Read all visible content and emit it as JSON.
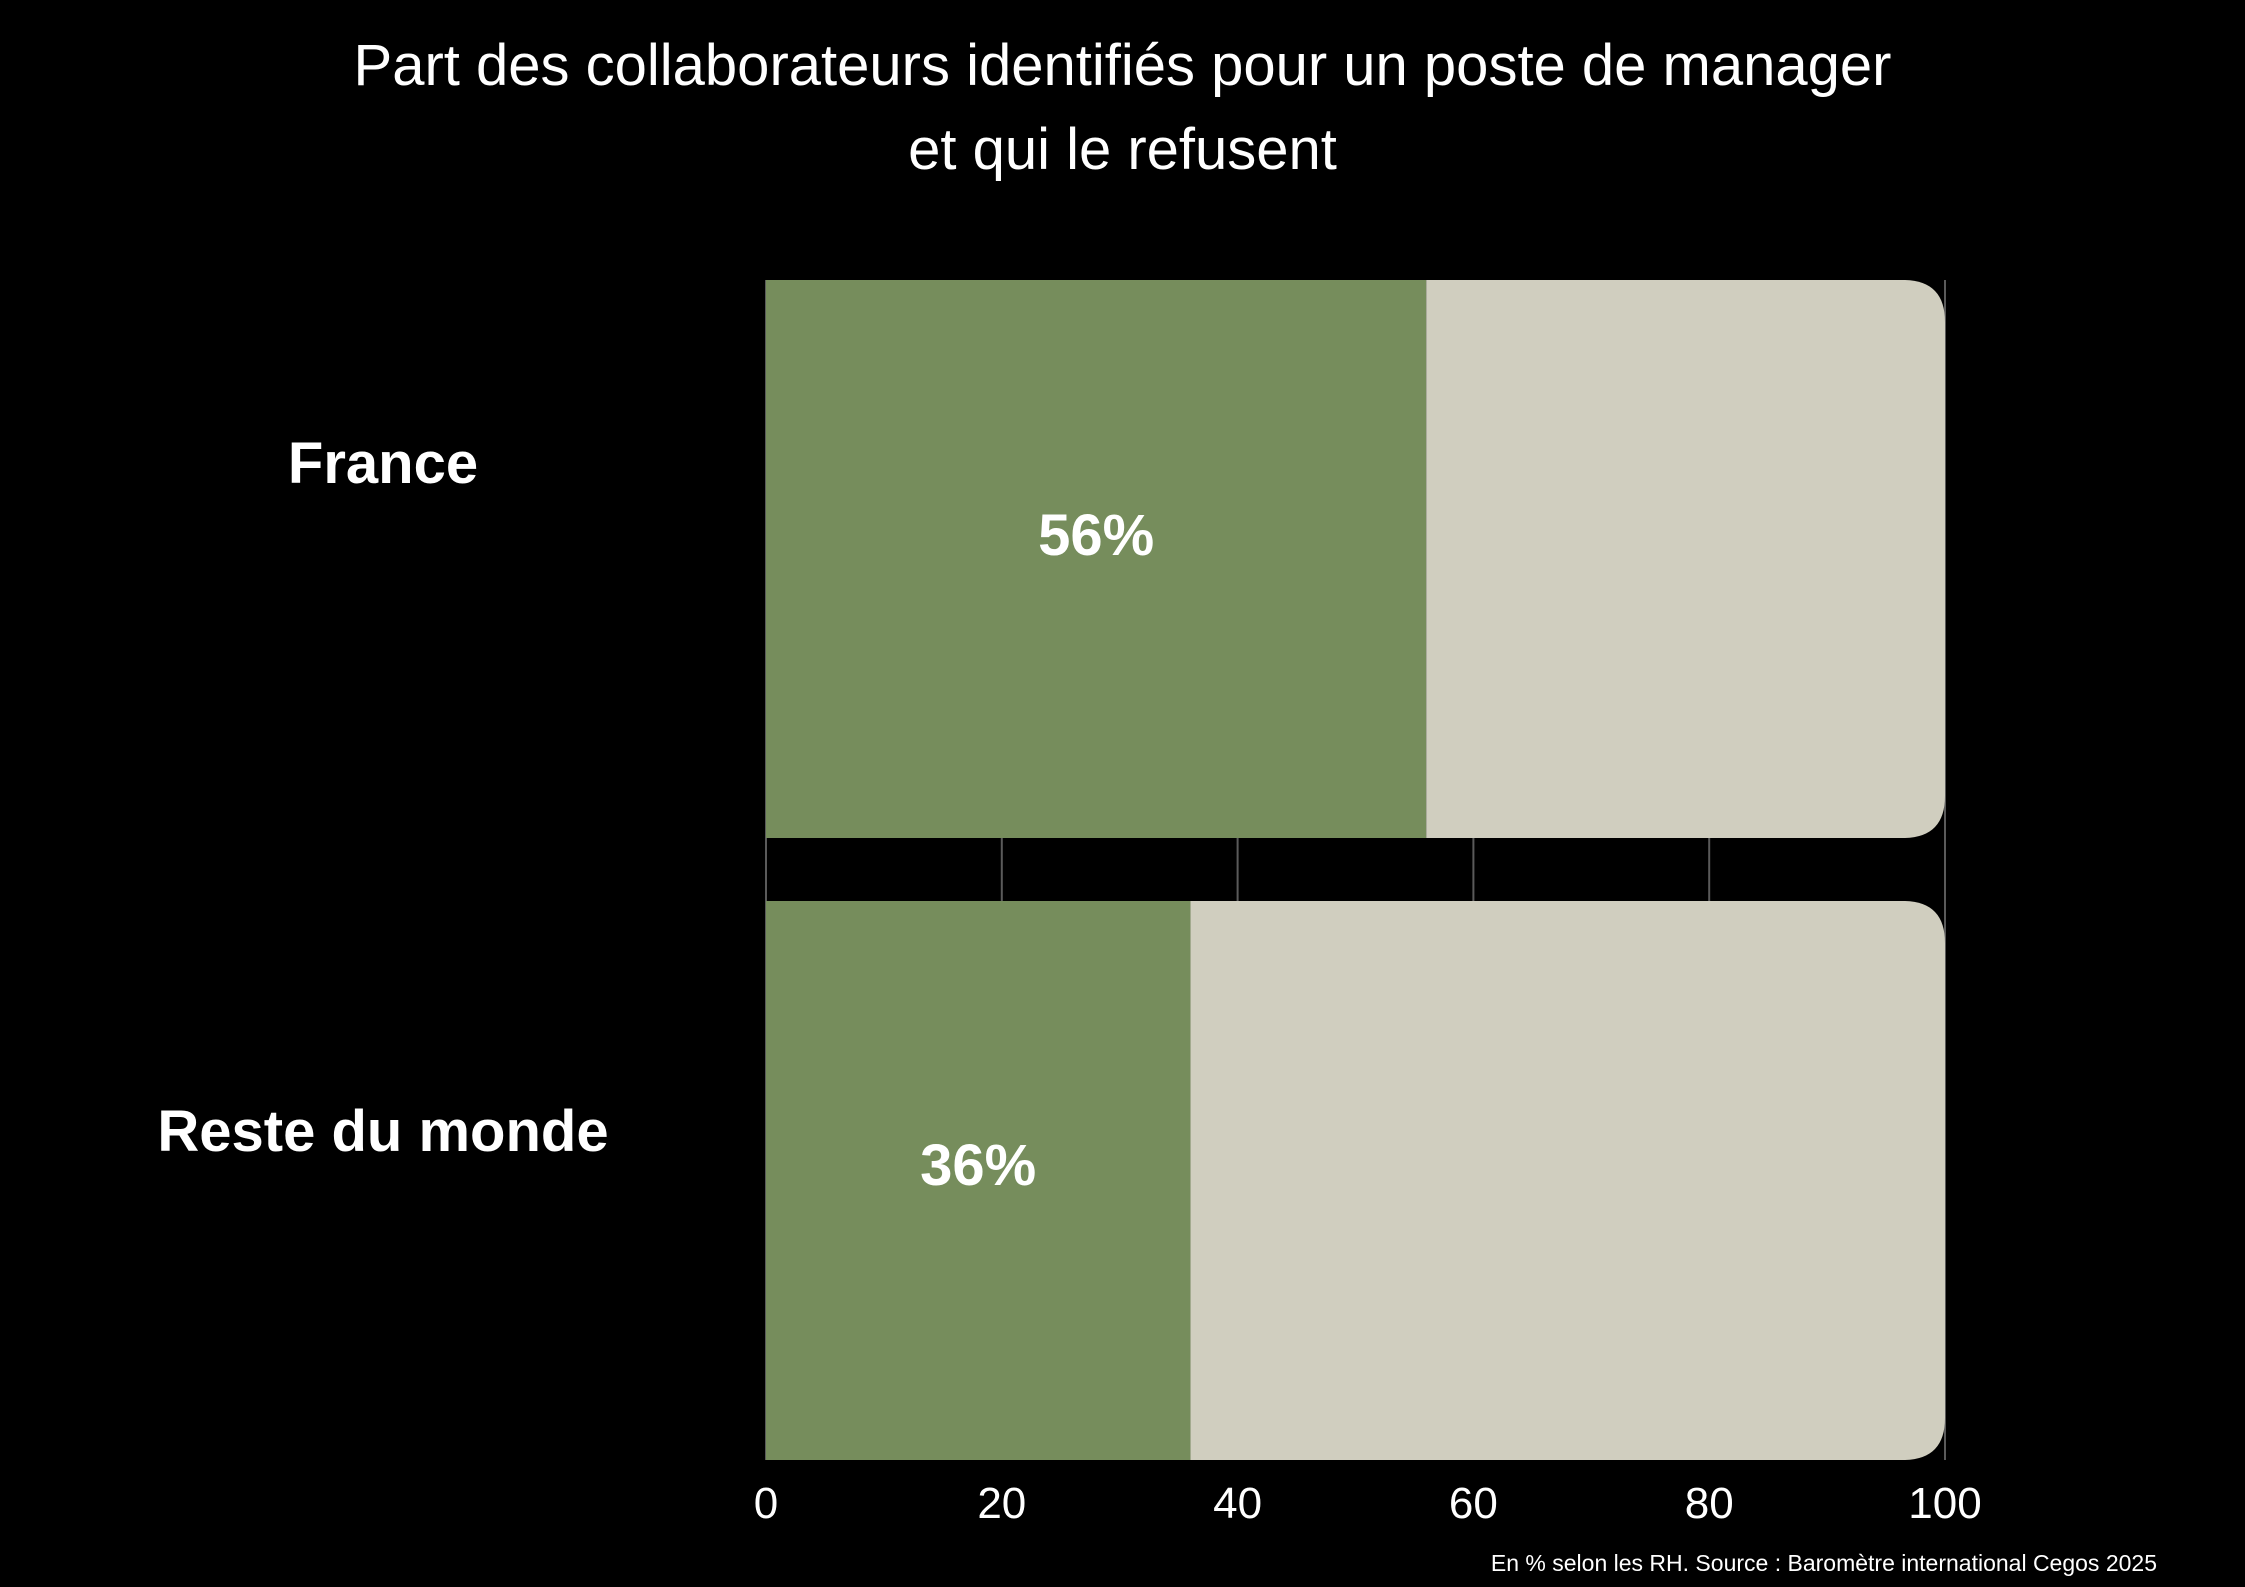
{
  "chart_data": {
    "type": "bar",
    "orientation": "horizontal",
    "stacked": true,
    "title_lines": [
      "Part des collaborateurs identifiés pour un poste de manager",
      "et qui le refusent"
    ],
    "categories": [
      "France",
      "Reste du monde"
    ],
    "series": [
      {
        "values": [
          56,
          36
        ],
        "color": "#768d5c"
      },
      {
        "values": [
          44,
          64
        ],
        "color": "#d0cebf"
      }
    ],
    "data_labels": [
      "56%",
      "36%"
    ],
    "xlim": [
      0,
      100
    ],
    "x_ticks": [
      "0",
      "20",
      "40",
      "60",
      "80",
      "100"
    ],
    "grid": "vertical",
    "source": "En % selon les RH. Source : Baromètre international Cegos 2025"
  }
}
